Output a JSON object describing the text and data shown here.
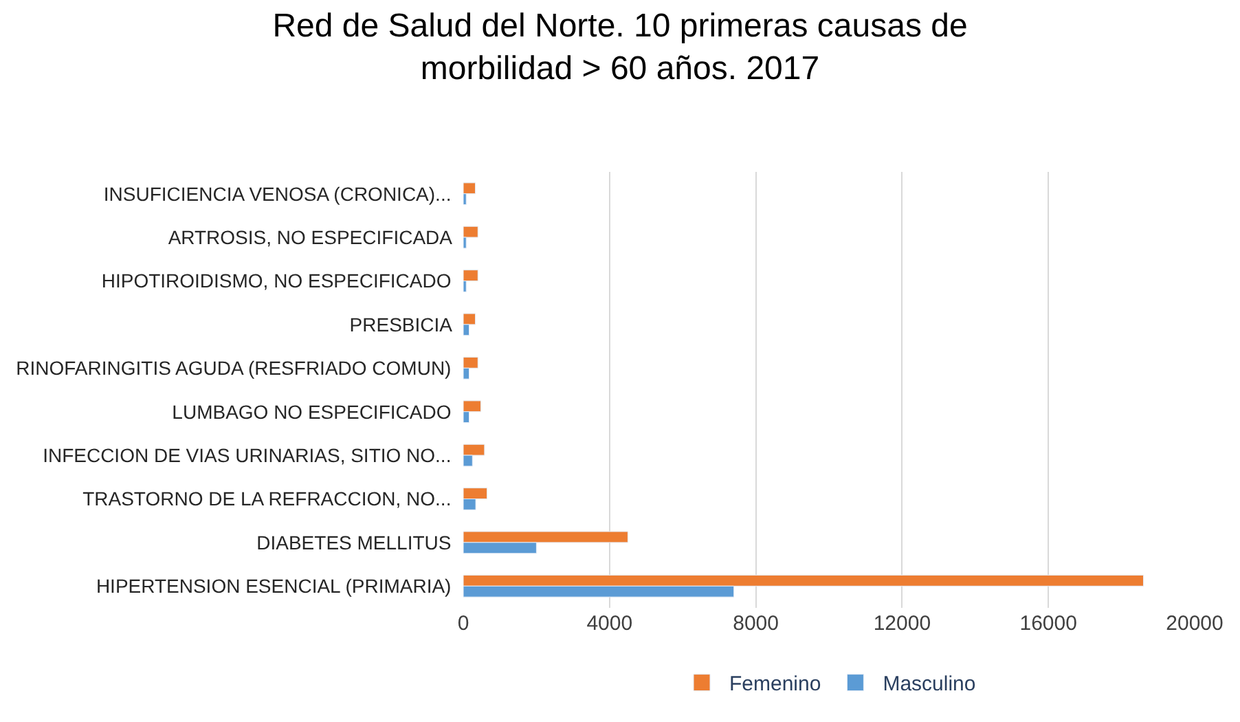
{
  "chart_data": {
    "type": "bar",
    "orientation": "horizontal",
    "title": "Red de Salud del Norte. 10 primeras causas de\nmorbilidad > 60 años. 2017",
    "categories": [
      "INSUFICIENCIA VENOSA (CRONICA)...",
      "ARTROSIS, NO ESPECIFICADA",
      "HIPOTIROIDISMO, NO ESPECIFICADO",
      "PRESBICIA",
      "RINOFARINGITIS AGUDA (RESFRIADO COMUN)",
      "LUMBAGO NO ESPECIFICADO",
      "INFECCION DE VIAS URINARIAS, SITIO NO...",
      "TRASTORNO DE LA REFRACCION, NO...",
      "DIABETES MELLITUS",
      "HIPERTENSION ESENCIAL (PRIMARIA)"
    ],
    "series": [
      {
        "name": "Femenino",
        "color": "#ed7d31",
        "values": [
          330,
          400,
          400,
          330,
          400,
          480,
          580,
          650,
          4500,
          18600
        ]
      },
      {
        "name": "Masculino",
        "color": "#5b9bd5",
        "values": [
          80,
          80,
          80,
          160,
          160,
          160,
          250,
          340,
          2000,
          7400
        ]
      }
    ],
    "xlim": [
      0,
      20000
    ],
    "xticks": [
      0,
      4000,
      8000,
      12000,
      16000,
      20000
    ],
    "grid": "x",
    "legend": "bottom"
  }
}
